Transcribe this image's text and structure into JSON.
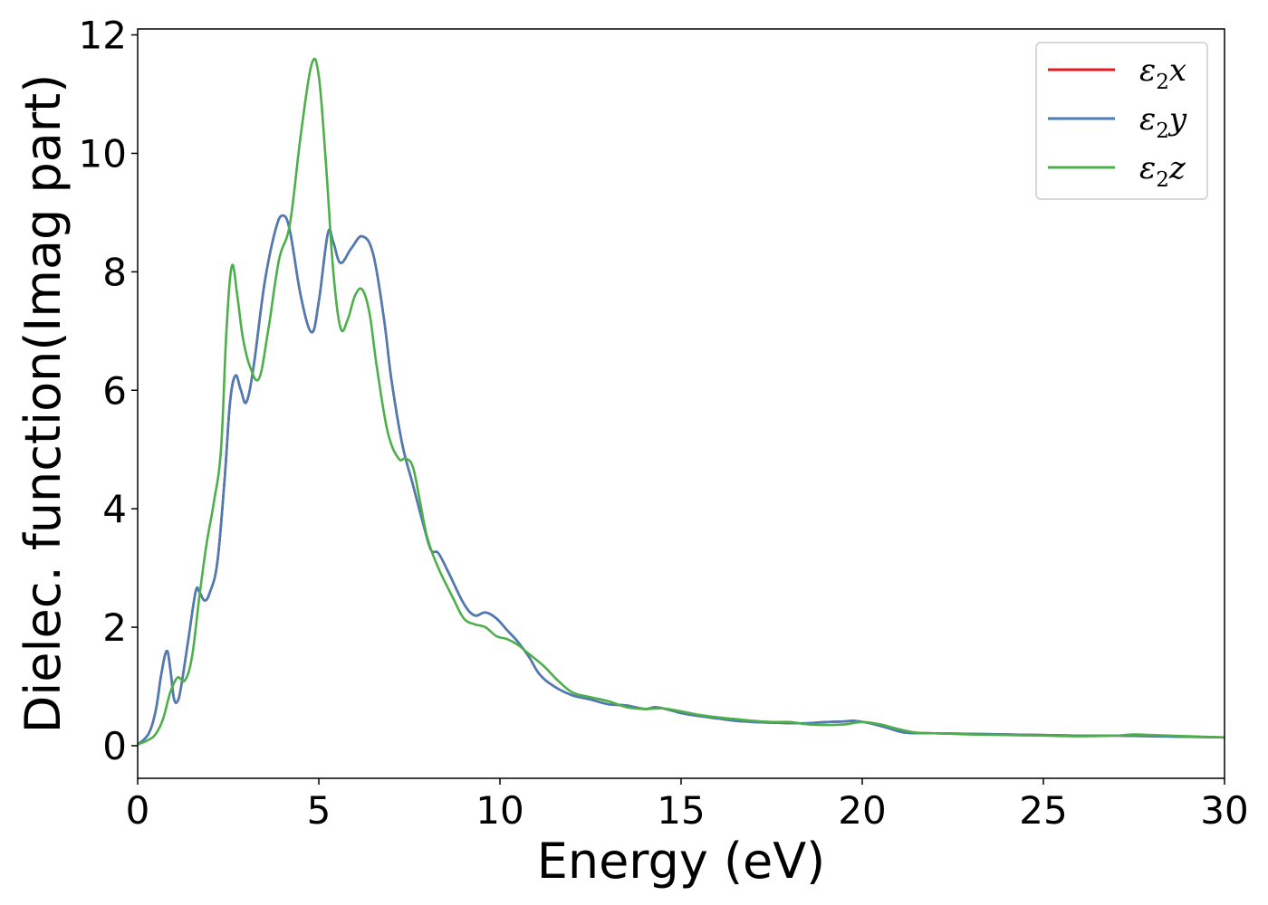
{
  "chart_data": {
    "type": "line",
    "xlabel": "Energy (eV)",
    "ylabel": "Dielec. function(Imag part)",
    "xlim": [
      0,
      30
    ],
    "ylim": [
      -0.55,
      12.1
    ],
    "xticks": [
      0,
      5,
      10,
      15,
      20,
      25,
      30
    ],
    "yticks": [
      0,
      2,
      4,
      6,
      8,
      10,
      12
    ],
    "grid": false,
    "legend_position": "top-right",
    "series": [
      {
        "name": "ε₂x",
        "legend_base": "ε",
        "legend_sub": "2",
        "legend_suffix": "x",
        "color": "#e41a1c",
        "x": [
          0,
          0.3,
          0.5,
          0.65,
          0.8,
          0.9,
          1.0,
          1.1,
          1.2,
          1.4,
          1.6,
          1.7,
          1.85,
          2.0,
          2.2,
          2.4,
          2.55,
          2.7,
          2.85,
          3.0,
          3.2,
          3.5,
          3.8,
          4.0,
          4.2,
          4.5,
          4.8,
          5.0,
          5.25,
          5.4,
          5.6,
          5.9,
          6.2,
          6.5,
          6.8,
          7.0,
          7.3,
          7.6,
          7.9,
          8.1,
          8.3,
          8.6,
          9.0,
          9.3,
          9.6,
          9.9,
          10.2,
          10.5,
          10.8,
          11.1,
          11.5,
          12.0,
          12.5,
          13.0,
          13.5,
          14.0,
          14.3,
          14.7,
          15.0,
          15.5,
          16.0,
          16.5,
          17.0,
          17.5,
          18.0,
          18.5,
          19.0,
          19.5,
          19.8,
          20.2,
          20.7,
          21.2,
          22.0,
          23.0,
          24.0,
          25.0,
          26.0,
          27.0,
          28.0,
          29.0,
          30.0
        ],
        "y": [
          0.02,
          0.2,
          0.6,
          1.2,
          1.6,
          1.3,
          0.8,
          0.75,
          1.0,
          1.8,
          2.6,
          2.6,
          2.45,
          2.6,
          3.1,
          4.5,
          5.8,
          6.25,
          6.0,
          5.8,
          6.4,
          7.8,
          8.7,
          8.95,
          8.7,
          7.6,
          6.98,
          7.5,
          8.65,
          8.5,
          8.15,
          8.4,
          8.6,
          8.3,
          7.2,
          6.2,
          5.1,
          4.4,
          3.7,
          3.3,
          3.25,
          2.9,
          2.4,
          2.2,
          2.25,
          2.15,
          1.95,
          1.75,
          1.5,
          1.2,
          1.0,
          0.85,
          0.78,
          0.7,
          0.68,
          0.62,
          0.65,
          0.6,
          0.55,
          0.5,
          0.46,
          0.42,
          0.4,
          0.39,
          0.38,
          0.38,
          0.4,
          0.41,
          0.42,
          0.38,
          0.3,
          0.22,
          0.21,
          0.2,
          0.19,
          0.18,
          0.17,
          0.17,
          0.16,
          0.15,
          0.14
        ]
      },
      {
        "name": "ε₂y",
        "legend_base": "ε",
        "legend_sub": "2",
        "legend_suffix": "y",
        "color": "#4a7cb5",
        "x": [
          0,
          0.3,
          0.5,
          0.65,
          0.8,
          0.9,
          1.0,
          1.1,
          1.2,
          1.4,
          1.6,
          1.7,
          1.85,
          2.0,
          2.2,
          2.4,
          2.55,
          2.7,
          2.85,
          3.0,
          3.2,
          3.5,
          3.8,
          4.0,
          4.2,
          4.5,
          4.8,
          5.0,
          5.25,
          5.4,
          5.6,
          5.9,
          6.2,
          6.5,
          6.8,
          7.0,
          7.3,
          7.6,
          7.9,
          8.1,
          8.3,
          8.6,
          9.0,
          9.3,
          9.6,
          9.9,
          10.2,
          10.5,
          10.8,
          11.1,
          11.5,
          12.0,
          12.5,
          13.0,
          13.5,
          14.0,
          14.3,
          14.7,
          15.0,
          15.5,
          16.0,
          16.5,
          17.0,
          17.5,
          18.0,
          18.5,
          19.0,
          19.5,
          19.8,
          20.2,
          20.7,
          21.2,
          22.0,
          23.0,
          24.0,
          25.0,
          26.0,
          27.0,
          28.0,
          29.0,
          30.0
        ],
        "y": [
          0.02,
          0.2,
          0.6,
          1.2,
          1.6,
          1.3,
          0.8,
          0.75,
          1.0,
          1.8,
          2.6,
          2.6,
          2.45,
          2.6,
          3.1,
          4.5,
          5.8,
          6.25,
          6.0,
          5.8,
          6.4,
          7.8,
          8.7,
          8.95,
          8.7,
          7.6,
          6.98,
          7.5,
          8.65,
          8.5,
          8.15,
          8.4,
          8.6,
          8.3,
          7.2,
          6.2,
          5.1,
          4.4,
          3.7,
          3.3,
          3.25,
          2.9,
          2.4,
          2.2,
          2.25,
          2.15,
          1.95,
          1.75,
          1.5,
          1.2,
          1.0,
          0.85,
          0.78,
          0.7,
          0.68,
          0.62,
          0.65,
          0.6,
          0.55,
          0.5,
          0.46,
          0.42,
          0.4,
          0.39,
          0.38,
          0.38,
          0.4,
          0.41,
          0.42,
          0.38,
          0.3,
          0.22,
          0.21,
          0.2,
          0.19,
          0.18,
          0.17,
          0.17,
          0.16,
          0.15,
          0.14
        ]
      },
      {
        "name": "ε₂z",
        "legend_base": "ε",
        "legend_sub": "2",
        "legend_suffix": "z",
        "color": "#4daf4a",
        "x": [
          0,
          0.3,
          0.5,
          0.7,
          0.9,
          1.1,
          1.3,
          1.5,
          1.7,
          1.9,
          2.1,
          2.3,
          2.45,
          2.6,
          2.75,
          2.9,
          3.1,
          3.35,
          3.6,
          3.9,
          4.2,
          4.5,
          4.8,
          5.0,
          5.2,
          5.4,
          5.6,
          5.8,
          6.0,
          6.2,
          6.4,
          6.6,
          6.9,
          7.2,
          7.4,
          7.6,
          7.8,
          8.0,
          8.3,
          8.7,
          9.0,
          9.3,
          9.6,
          9.9,
          10.2,
          10.5,
          10.8,
          11.2,
          11.6,
          12.0,
          12.5,
          13.0,
          13.5,
          14.0,
          14.5,
          15.0,
          15.5,
          16.0,
          16.5,
          17.0,
          17.5,
          18.0,
          18.5,
          19.0,
          19.5,
          20.0,
          20.5,
          21.0,
          21.5,
          22.0,
          23.0,
          24.0,
          25.0,
          26.0,
          27.0,
          27.5,
          28.0,
          29.0,
          30.0
        ],
        "y": [
          0.02,
          0.1,
          0.2,
          0.45,
          0.9,
          1.15,
          1.1,
          1.5,
          2.5,
          3.4,
          4.1,
          5.0,
          7.0,
          8.1,
          7.6,
          6.9,
          6.4,
          6.2,
          7.0,
          8.2,
          8.8,
          10.3,
          11.5,
          11.3,
          9.8,
          8.0,
          7.05,
          7.2,
          7.6,
          7.7,
          7.3,
          6.4,
          5.3,
          4.85,
          4.85,
          4.7,
          4.1,
          3.5,
          3.0,
          2.5,
          2.15,
          2.05,
          2.0,
          1.85,
          1.8,
          1.7,
          1.55,
          1.35,
          1.1,
          0.9,
          0.82,
          0.75,
          0.65,
          0.62,
          0.63,
          0.58,
          0.52,
          0.48,
          0.45,
          0.42,
          0.4,
          0.4,
          0.36,
          0.35,
          0.36,
          0.4,
          0.36,
          0.28,
          0.22,
          0.21,
          0.19,
          0.18,
          0.17,
          0.16,
          0.17,
          0.19,
          0.18,
          0.16,
          0.14
        ]
      }
    ]
  }
}
